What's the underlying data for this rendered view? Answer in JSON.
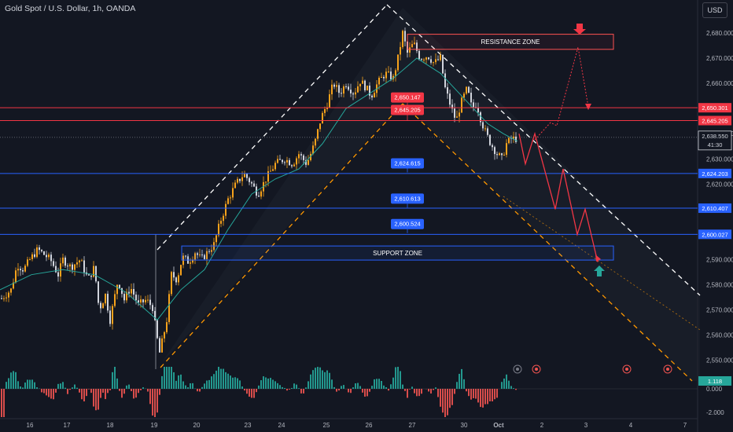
{
  "header": {
    "symbol_title": "Gold Spot / U.S. Dollar, 1h, OANDA",
    "currency_button": "USD"
  },
  "colors": {
    "background": "#131722",
    "bull_candle": "#f7a21b",
    "bear_candle": "#d1d4dc",
    "ema": "#26a69a",
    "red_level": "#f23645",
    "blue_level": "#2962ff",
    "zone_border": "#ff5252",
    "support_border": "#2962ff",
    "channel_white": "#ffffff",
    "channel_orange": "#ff9800",
    "projection": "#f23645",
    "osc_pos": "#26a69a",
    "osc_neg": "#ef5350"
  },
  "chart_data": {
    "type": "candlestick",
    "title": "Gold Spot / U.S. Dollar, 1h, OANDA",
    "ylim": [
      2546,
      2686
    ],
    "y_ticks": [
      "2,680.000",
      "2,670.000",
      "2,660.000",
      "2,640.000",
      "2,630.000",
      "2,620.000",
      "2,590.000",
      "2,580.000",
      "2,570.000",
      "2,560.000",
      "2,550.000"
    ],
    "x_ticks": [
      "16",
      "17",
      "18",
      "19",
      "20",
      "23",
      "24",
      "25",
      "26",
      "27",
      "30",
      "Oct",
      "2",
      "3",
      "4",
      "7"
    ],
    "current_price": "2,638.550",
    "countdown": "41:30",
    "price_path": [
      [
        0,
        2574
      ],
      [
        14,
        2578
      ],
      [
        22,
        2588
      ],
      [
        30,
        2586
      ],
      [
        38,
        2590
      ],
      [
        48,
        2594
      ],
      [
        56,
        2592
      ],
      [
        64,
        2590
      ],
      [
        74,
        2584
      ],
      [
        80,
        2590
      ],
      [
        90,
        2587
      ],
      [
        102,
        2590
      ],
      [
        112,
        2582
      ],
      [
        120,
        2587
      ],
      [
        126,
        2570
      ],
      [
        134,
        2576
      ],
      [
        140,
        2566
      ],
      [
        150,
        2582
      ],
      [
        158,
        2574
      ],
      [
        166,
        2579
      ],
      [
        176,
        2572
      ],
      [
        186,
        2574
      ],
      [
        194,
        2571
      ],
      [
        199,
        2560
      ],
      [
        203,
        2553
      ],
      [
        208,
        2560
      ],
      [
        212,
        2566
      ],
      [
        218,
        2584
      ],
      [
        225,
        2582
      ],
      [
        232,
        2591
      ],
      [
        240,
        2589
      ],
      [
        248,
        2593
      ],
      [
        256,
        2590
      ],
      [
        264,
        2593
      ],
      [
        272,
        2596
      ],
      [
        280,
        2605
      ],
      [
        290,
        2614
      ],
      [
        300,
        2620
      ],
      [
        310,
        2624
      ],
      [
        318,
        2621
      ],
      [
        328,
        2616
      ],
      [
        338,
        2622
      ],
      [
        350,
        2628
      ],
      [
        362,
        2630
      ],
      [
        372,
        2628
      ],
      [
        380,
        2632
      ],
      [
        390,
        2628
      ],
      [
        400,
        2636
      ],
      [
        408,
        2646
      ],
      [
        416,
        2652
      ],
      [
        424,
        2660
      ],
      [
        432,
        2656
      ],
      [
        440,
        2660
      ],
      [
        450,
        2656
      ],
      [
        458,
        2661
      ],
      [
        466,
        2658
      ],
      [
        472,
        2655
      ],
      [
        480,
        2660
      ],
      [
        490,
        2664
      ],
      [
        500,
        2662
      ],
      [
        506,
        2670
      ],
      [
        512,
        2680
      ],
      [
        518,
        2672
      ],
      [
        526,
        2676
      ],
      [
        534,
        2670
      ],
      [
        544,
        2671
      ],
      [
        552,
        2668
      ],
      [
        560,
        2670
      ],
      [
        566,
        2658
      ],
      [
        574,
        2650
      ],
      [
        580,
        2645
      ],
      [
        586,
        2652
      ],
      [
        594,
        2658
      ],
      [
        600,
        2650
      ],
      [
        606,
        2652
      ],
      [
        612,
        2645
      ],
      [
        618,
        2640
      ],
      [
        624,
        2636
      ],
      [
        632,
        2632
      ],
      [
        638,
        2630
      ],
      [
        644,
        2636
      ],
      [
        650,
        2638
      ],
      [
        656,
        2638
      ]
    ],
    "ema_path": [
      [
        0,
        2578
      ],
      [
        40,
        2584
      ],
      [
        80,
        2586
      ],
      [
        120,
        2584
      ],
      [
        160,
        2577
      ],
      [
        200,
        2566
      ],
      [
        230,
        2578
      ],
      [
        260,
        2586
      ],
      [
        290,
        2602
      ],
      [
        320,
        2616
      ],
      [
        350,
        2622
      ],
      [
        380,
        2626
      ],
      [
        410,
        2636
      ],
      [
        440,
        2650
      ],
      [
        470,
        2656
      ],
      [
        500,
        2662
      ],
      [
        530,
        2670
      ],
      [
        560,
        2664
      ],
      [
        590,
        2654
      ],
      [
        620,
        2644
      ],
      [
        640,
        2640
      ],
      [
        658,
        2637
      ]
    ],
    "levels": [
      {
        "price": 2650.301,
        "label": "2,650.301",
        "color": "red"
      },
      {
        "price": 2645.205,
        "label": "2,645.205",
        "color": "red"
      },
      {
        "price": 2624.203,
        "label": "2,624.203",
        "color": "blue"
      },
      {
        "price": 2610.407,
        "label": "2,610.407",
        "color": "blue"
      },
      {
        "price": 2600.027,
        "label": "2,600.027",
        "color": "blue"
      }
    ],
    "level_markers": [
      {
        "price": 2650.147,
        "label": "2,650.147",
        "color": "red"
      },
      {
        "price": 2645.205,
        "label": "2,645.205",
        "color": "red"
      },
      {
        "price": 2624.615,
        "label": "2,624.615",
        "color": "blue"
      },
      {
        "price": 2610.613,
        "label": "2,610.613",
        "color": "blue"
      },
      {
        "price": 2600.524,
        "label": "2,600.524",
        "color": "blue"
      }
    ],
    "zones": [
      {
        "label": "RESISTANCE ZONE",
        "from_price": 2679.5,
        "to_price": 2673.5
      },
      {
        "label": "SUPPORT ZONE",
        "from_price": 2595.4,
        "to_price": 2589.8
      }
    ],
    "projection_path": [
      [
        660,
        2640
      ],
      [
        668,
        2628
      ],
      [
        680,
        2640
      ],
      [
        706,
        2610
      ],
      [
        716,
        2626
      ],
      [
        734,
        2600
      ],
      [
        744,
        2610
      ],
      [
        760,
        2589
      ]
    ],
    "oscillator": {
      "current_value": "1.118",
      "ticks": [
        "0.000",
        "-2.000"
      ]
    }
  }
}
